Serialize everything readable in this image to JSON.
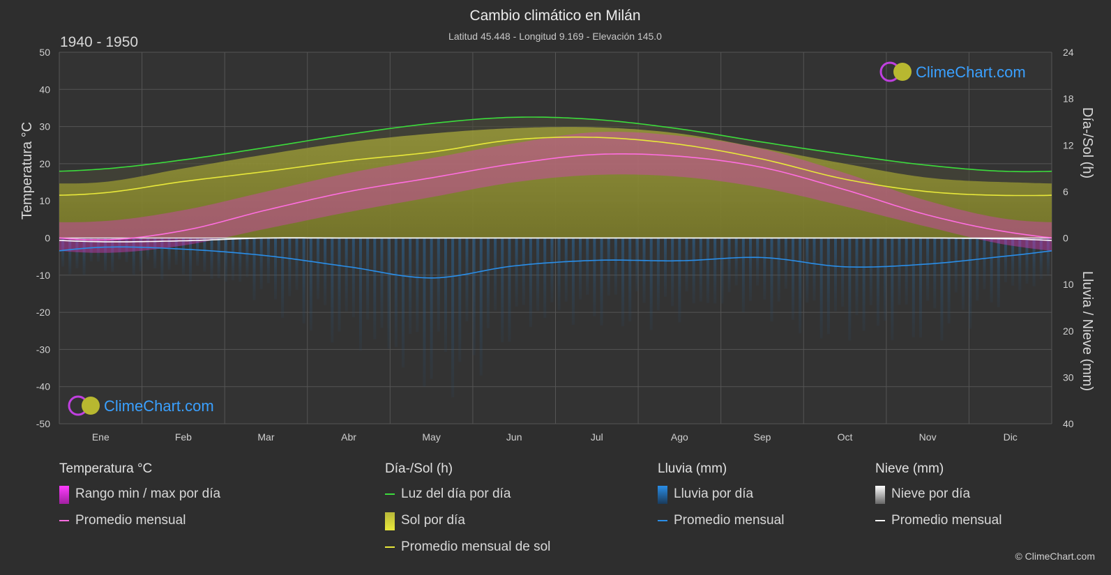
{
  "header": {
    "title": "Cambio climático en Milán",
    "subtitle": "Latitud 45.448 - Longitud 9.169 - Elevación 145.0",
    "period": "1940 - 1950"
  },
  "logo": {
    "text": "ClimeChart.com"
  },
  "copyright": "© ClimeChart.com",
  "colors": {
    "background": "#2e2e2e",
    "daylight": "#3cdc3c",
    "sunshine_avg": "#e8e83a",
    "sunshine_fill": "#8f8f2e",
    "temp_avg": "#ff6ee0",
    "temp_range": "#d83cc0",
    "rain": "#2a8ee8",
    "snow": "#ffffff"
  },
  "chart_data": {
    "type": "line",
    "months": [
      "Ene",
      "Feb",
      "Mar",
      "Abr",
      "May",
      "Jun",
      "Jul",
      "Ago",
      "Sep",
      "Oct",
      "Nov",
      "Dic"
    ],
    "left_axis": {
      "title": "Temperatura °C",
      "min": -50,
      "max": 50,
      "ticks": [
        50,
        40,
        30,
        20,
        10,
        0,
        -10,
        -20,
        -30,
        -40,
        -50
      ]
    },
    "right_axis_top": {
      "title": "Día-/Sol (h)",
      "min": 0,
      "max": 24,
      "ticks": [
        24,
        18,
        12,
        6,
        0
      ]
    },
    "right_axis_bottom": {
      "title": "Lluvia / Nieve (mm)",
      "min": 0,
      "max": 40,
      "ticks": [
        0,
        10,
        20,
        30,
        40
      ]
    },
    "grid": true,
    "series": [
      {
        "name": "Luz del día por día",
        "axis": "hours",
        "values": [
          8.9,
          10.1,
          11.7,
          13.4,
          14.8,
          15.6,
          15.3,
          14.1,
          12.4,
          10.8,
          9.4,
          8.6
        ]
      },
      {
        "name": "Promedio mensual de sol",
        "axis": "hours",
        "values": [
          5.8,
          7.3,
          8.6,
          10.0,
          11.1,
          12.7,
          13.0,
          12.1,
          10.2,
          7.6,
          6.0,
          5.5
        ]
      },
      {
        "name": "Sol por día",
        "axis": "hours",
        "values": [
          7.2,
          9.0,
          10.8,
          12.4,
          13.5,
          14.2,
          14.3,
          13.5,
          11.6,
          9.6,
          7.8,
          7.2
        ]
      },
      {
        "name": "Promedio mensual",
        "group": "Temperatura °C",
        "axis": "temperature",
        "values": [
          -0.5,
          2.0,
          7.5,
          12.5,
          16.2,
          20.0,
          22.5,
          22.0,
          19.0,
          13.0,
          6.2,
          1.5
        ]
      },
      {
        "name": "Rango min / max por día",
        "group": "Temperatura °C",
        "axis": "temperature",
        "min": [
          -4.0,
          -2.0,
          2.5,
          7.0,
          11.0,
          15.0,
          17.0,
          16.5,
          13.5,
          8.5,
          3.0,
          -2.0
        ],
        "max": [
          4.5,
          7.5,
          12.5,
          17.5,
          21.5,
          25.5,
          28.5,
          27.5,
          24.0,
          17.5,
          10.0,
          5.0
        ]
      },
      {
        "name": "Promedio mensual",
        "group": "Lluvia (mm)",
        "axis": "precipitation",
        "values": [
          2.0,
          2.4,
          3.8,
          6.2,
          8.6,
          6.0,
          4.8,
          4.9,
          4.2,
          6.2,
          5.6,
          3.8
        ]
      },
      {
        "name": "Promedio mensual",
        "group": "Nieve (mm)",
        "axis": "precipitation",
        "values": [
          0.8,
          0.6,
          0.0,
          0.0,
          0.0,
          0.0,
          0.0,
          0.0,
          0.0,
          0.0,
          0.0,
          0.2
        ]
      }
    ]
  },
  "legend": {
    "temperature": {
      "title": "Temperatura °C",
      "items": [
        "Rango min / max por día",
        "Promedio mensual"
      ]
    },
    "sun": {
      "title": "Día-/Sol (h)",
      "items": [
        "Luz del día por día",
        "Sol por día",
        "Promedio mensual de sol"
      ]
    },
    "rain": {
      "title": "Lluvia (mm)",
      "items": [
        "Lluvia por día",
        "Promedio mensual"
      ]
    },
    "snow": {
      "title": "Nieve (mm)",
      "items": [
        "Nieve por día",
        "Promedio mensual"
      ]
    }
  }
}
